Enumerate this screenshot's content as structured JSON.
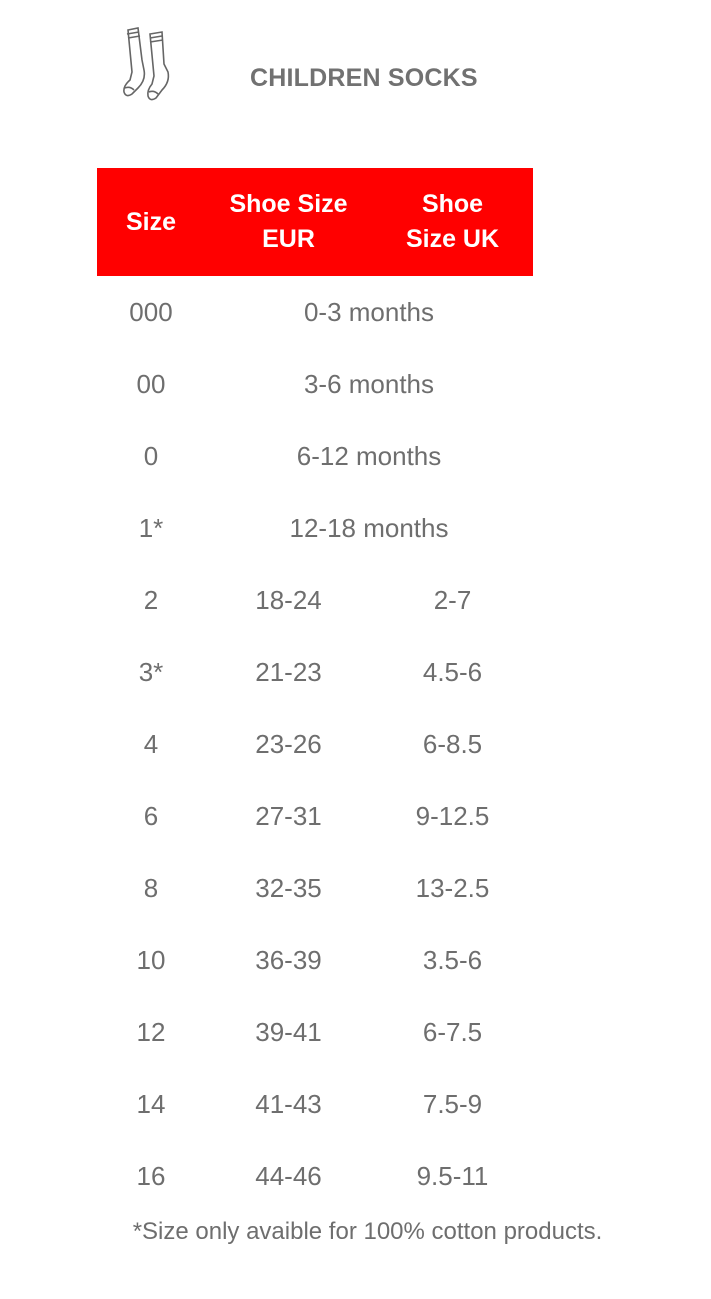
{
  "header": {
    "title": "CHILDREN SOCKS",
    "icon": "socks-icon"
  },
  "table": {
    "header_color": "#ff0000",
    "columns": [
      "Size",
      "Shoe Size EUR",
      "Shoe Size UK"
    ],
    "rows": [
      {
        "size": "000",
        "span": "0-3 months"
      },
      {
        "size": "00",
        "span": "3-6 months"
      },
      {
        "size": "0",
        "span": "6-12 months"
      },
      {
        "size": "1*",
        "span": "12-18 months"
      },
      {
        "size": "2",
        "eur": "18-24",
        "uk": "2-7"
      },
      {
        "size": "3*",
        "eur": "21-23",
        "uk": "4.5-6"
      },
      {
        "size": "4",
        "eur": "23-26",
        "uk": "6-8.5"
      },
      {
        "size": "6",
        "eur": "27-31",
        "uk": "9-12.5"
      },
      {
        "size": "8",
        "eur": "32-35",
        "uk": "13-2.5"
      },
      {
        "size": "10",
        "eur": "36-39",
        "uk": "3.5-6"
      },
      {
        "size": "12",
        "eur": "39-41",
        "uk": "6-7.5"
      },
      {
        "size": "14",
        "eur": "41-43",
        "uk": "7.5-9"
      },
      {
        "size": "16",
        "eur": "44-46",
        "uk": "9.5-11"
      }
    ]
  },
  "footnote": "*Size only avaible for 100% cotton products."
}
